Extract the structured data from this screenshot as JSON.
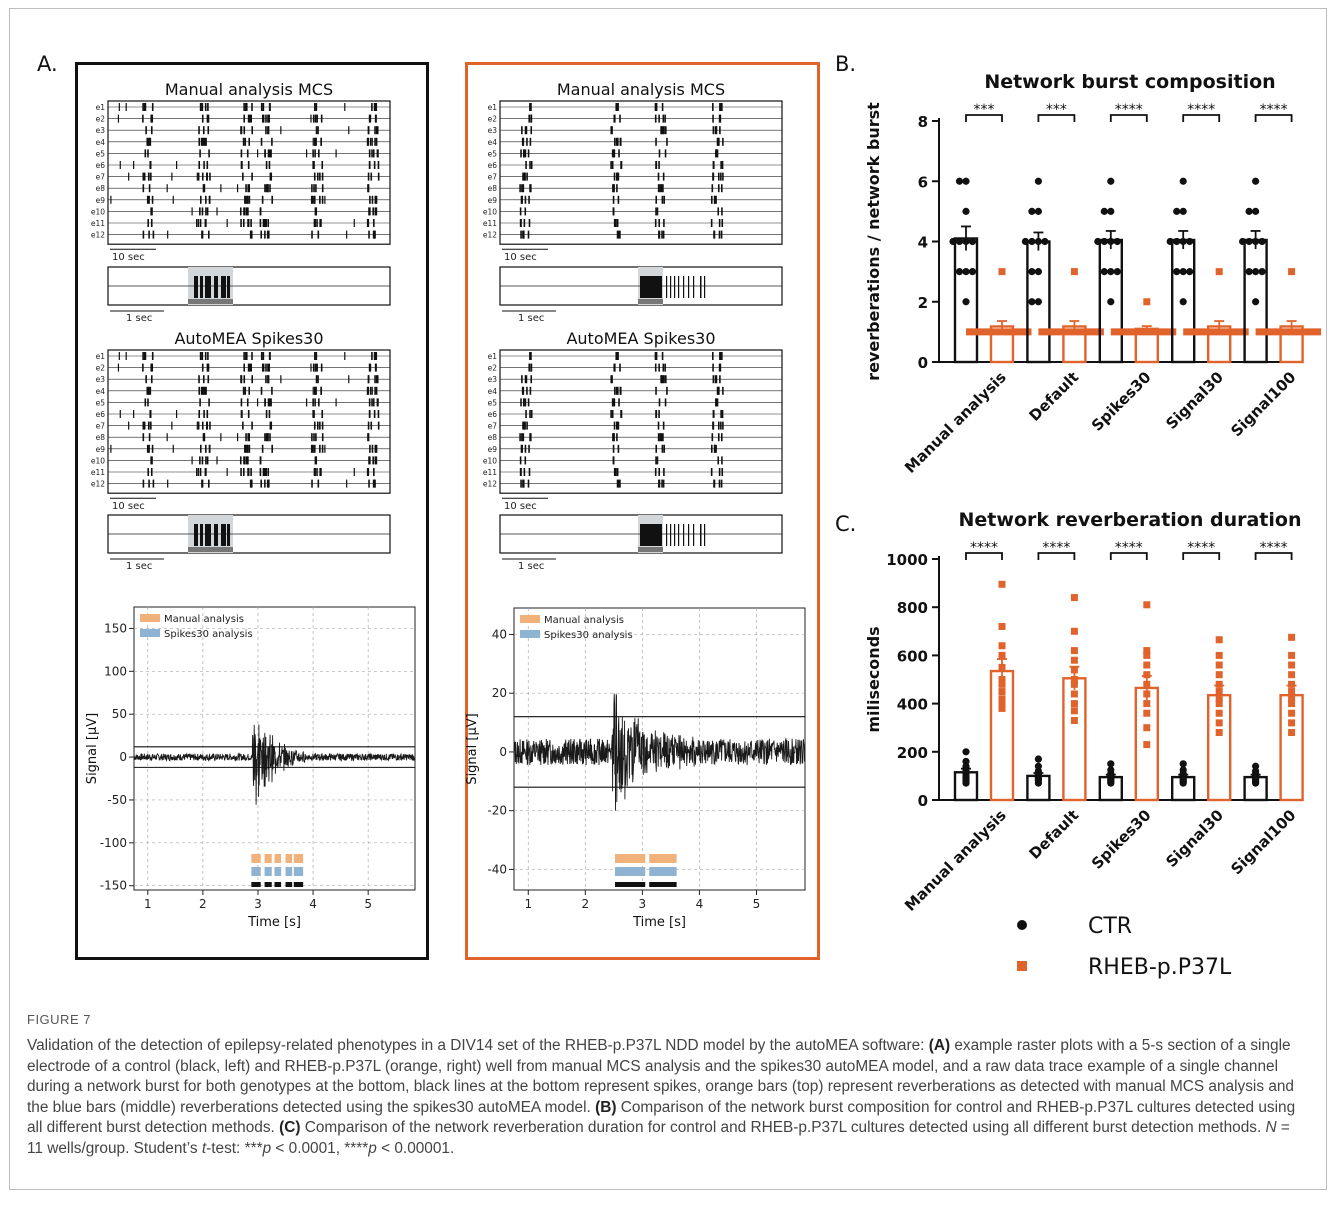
{
  "panels": {
    "a_label": "A.",
    "b_label": "B.",
    "c_label": "C."
  },
  "panel_a": {
    "raster_title_manual": "Manual analysis MCS",
    "raster_title_auto": "AutoMEA Spikes30",
    "electrodes": [
      "e1",
      "e2",
      "e3",
      "e4",
      "e5",
      "e6",
      "e7",
      "e8",
      "e9",
      "e10",
      "e11",
      "e12"
    ],
    "scale_10s": "10 sec",
    "scale_1s": "1 sec",
    "trace_legend_manual": "Manual analysis",
    "trace_legend_spikes30": "Spikes30 analysis",
    "ylabel": "Signal [µV]",
    "xlabel": "Time [s]",
    "x_ticks": [
      "1",
      "2",
      "3",
      "4",
      "5"
    ],
    "left_y_ticks": [
      "150",
      "100",
      "50",
      "0",
      "-50",
      "-100",
      "-150"
    ],
    "right_y_ticks": [
      "40",
      "20",
      "0",
      "-20",
      "-40"
    ],
    "colors": {
      "ctr_frame": "#111111",
      "rheb_frame": "#e0632c",
      "manual_bar": "#f0b27a",
      "spikes30_bar": "#8fb3d3"
    }
  },
  "chart_data": [
    {
      "type": "bar",
      "title": "Network burst composition",
      "ylabel": "reverberations / network burst",
      "ylim": [
        0,
        8
      ],
      "y_ticks": [
        "0",
        "2",
        "4",
        "6",
        "8"
      ],
      "categories": [
        "Manual analysis",
        "Default",
        "Spikes30",
        "Signal30",
        "Signal100"
      ],
      "series": [
        {
          "name": "CTR",
          "color": "#111111",
          "values": [
            4.1,
            4.0,
            4.05,
            4.05,
            4.05
          ],
          "errors": [
            0.4,
            0.3,
            0.3,
            0.3,
            0.3
          ],
          "points": [
            [
              2,
              3,
              3,
              3,
              4,
              4,
              4,
              4,
              5,
              6,
              6
            ],
            [
              2,
              2,
              3,
              3,
              4,
              4,
              4,
              4,
              5,
              5,
              6
            ],
            [
              2,
              3,
              3,
              3,
              4,
              4,
              4,
              4,
              5,
              5,
              6
            ],
            [
              2,
              3,
              3,
              3,
              4,
              4,
              4,
              4,
              5,
              5,
              6
            ],
            [
              2,
              3,
              3,
              3,
              4,
              4,
              4,
              4,
              5,
              5,
              6
            ]
          ]
        },
        {
          "name": "RHEB-p.P37L",
          "color": "#e0632c",
          "values": [
            1.18,
            1.18,
            1.1,
            1.18,
            1.18
          ],
          "errors": [
            0.18,
            0.18,
            0.09,
            0.18,
            0.18
          ],
          "points": [
            [
              1,
              1,
              1,
              1,
              1,
              1,
              1,
              1,
              1,
              1,
              3
            ],
            [
              1,
              1,
              1,
              1,
              1,
              1,
              1,
              1,
              1,
              1,
              3
            ],
            [
              1,
              1,
              1,
              1,
              1,
              1,
              1,
              1,
              1,
              1,
              2
            ],
            [
              1,
              1,
              1,
              1,
              1,
              1,
              1,
              1,
              1,
              1,
              3
            ],
            [
              1,
              1,
              1,
              1,
              1,
              1,
              1,
              1,
              1,
              1,
              3
            ]
          ]
        }
      ],
      "significance": [
        "***",
        "***",
        "****",
        "****",
        "****"
      ]
    },
    {
      "type": "bar",
      "title": "Network reverberation duration",
      "ylabel": "miliseconds",
      "ylim": [
        0,
        1000
      ],
      "y_ticks": [
        "0",
        "200",
        "400",
        "600",
        "800",
        "1000"
      ],
      "categories": [
        "Manual analysis",
        "Default",
        "Spikes30",
        "Signal30",
        "Signal100"
      ],
      "series": [
        {
          "name": "CTR",
          "color": "#111111",
          "values": [
            115,
            100,
            95,
            95,
            95
          ],
          "errors": [
            15,
            12,
            10,
            10,
            10
          ],
          "points": [
            [
              70,
              80,
              90,
              95,
              100,
              110,
              120,
              130,
              140,
              160,
              200
            ],
            [
              70,
              80,
              85,
              90,
              95,
              100,
              105,
              110,
              120,
              140,
              170
            ],
            [
              70,
              75,
              80,
              85,
              90,
              95,
              100,
              105,
              110,
              125,
              150
            ],
            [
              70,
              75,
              80,
              85,
              90,
              95,
              100,
              105,
              110,
              125,
              150
            ],
            [
              70,
              75,
              80,
              85,
              90,
              95,
              100,
              105,
              110,
              120,
              140
            ]
          ]
        },
        {
          "name": "RHEB-p.P37L",
          "color": "#e0632c",
          "values": [
            535,
            505,
            465,
            435,
            435
          ],
          "errors": [
            50,
            48,
            50,
            40,
            40
          ],
          "points": [
            [
              380,
              400,
              420,
              450,
              480,
              500,
              550,
              600,
              640,
              720,
              895
            ],
            [
              330,
              370,
              400,
              440,
              480,
              500,
              540,
              580,
              620,
              700,
              840
            ],
            [
              230,
              300,
              360,
              400,
              440,
              480,
              520,
              560,
              600,
              620,
              810
            ],
            [
              280,
              320,
              360,
              400,
              420,
              450,
              480,
              520,
              560,
              600,
              665
            ],
            [
              280,
              320,
              360,
              400,
              420,
              450,
              480,
              520,
              560,
              600,
              675
            ]
          ]
        }
      ],
      "significance": [
        "****",
        "****",
        "****",
        "****",
        "****"
      ]
    }
  ],
  "legend": {
    "ctr": "CTR",
    "rheb": "RHEB-p.P37L"
  },
  "caption": {
    "figure_label": "FIGURE 7",
    "intro": "Validation of the detection of epilepsy-related phenotypes in a DIV14 set of the RHEB-p.P37L NDD model by the autoMEA software: ",
    "a_tag": "(A)",
    "a_text": " example raster plots with a 5-s section of a single electrode of a control (black, left) and RHEB-p.P37L (orange, right) well from manual MCS analysis and  the spikes30 autoMEA model, and a raw data trace example of a single channel during a network burst for both genotypes at the bottom, black lines at the bottom represent spikes, orange bars (top) represent reverberations as detected with manual MCS analysis and the blue bars (middle) reverberations detected using  the spikes30 autoMEA model. ",
    "b_tag": "(B)",
    "b_text": " Comparison of the network burst composition for control and RHEB-p.P37L cultures detected using all different burst detection methods. ",
    "c_tag": "(C)",
    "c_text": " Comparison of the network reverberation duration for control and RHEB-p.P37L cultures detected using all different burst detection methods. ",
    "n_var": "N",
    "n_text": " = 11 wells/group. Student’s ",
    "t_var": "t",
    "t_text": "-test: ***",
    "p1_var": "p",
    "p1_text": " < 0.0001, ****",
    "p2_var": "p",
    "p2_text": " < 0.00001."
  }
}
